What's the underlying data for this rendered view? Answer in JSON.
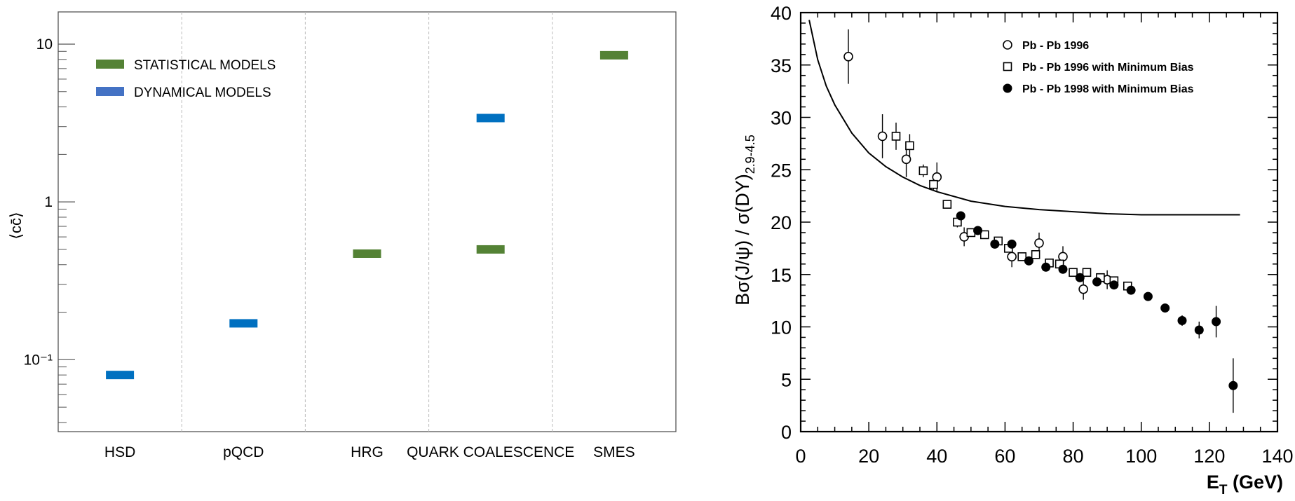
{
  "chart_data": [
    {
      "type": "bar",
      "y_scale": "log",
      "ylabel": "⟨cc̄⟩",
      "ylim": [
        0.035,
        16
      ],
      "ytick_labels": [
        "10⁻¹",
        "1",
        "10"
      ],
      "grid": "vertical dashed separators between categories",
      "categories": [
        "HSD",
        "pQCD",
        "HRG",
        "QUARK COALESCENCE",
        "SMES"
      ],
      "legend_placement": "top-left",
      "legend": [
        {
          "label": "STATISTICAL MODELS",
          "color": "#548235"
        },
        {
          "label": "DYNAMICAL MODELS",
          "color": "#4472C4"
        }
      ],
      "values": [
        {
          "category": "HSD",
          "value": 0.08,
          "model": "dynamical",
          "color": "#0070C0"
        },
        {
          "category": "pQCD",
          "value": 0.17,
          "model": "dynamical",
          "color": "#0070C0"
        },
        {
          "category": "HRG",
          "value": 0.47,
          "model": "statistical",
          "color": "#548235"
        },
        {
          "category": "QUARK COALESCENCE",
          "value": 0.5,
          "model": "statistical",
          "color": "#548235"
        },
        {
          "category": "SMES",
          "value": 8.5,
          "model": "statistical",
          "color": "#548235"
        },
        {
          "category": "QUARK COALESCENCE",
          "value": 3.4,
          "model": "dynamical",
          "color": "#0070C0"
        }
      ]
    },
    {
      "type": "scatter",
      "xlabel": "E_T (GeV)",
      "ylabel": "Bσ(J/ψ) / σ(DY)_2.9-4.5",
      "xlim": [
        0,
        140
      ],
      "ylim": [
        0,
        40
      ],
      "xticks": [
        0,
        20,
        40,
        60,
        80,
        100,
        120,
        140
      ],
      "yticks": [
        0,
        5,
        10,
        15,
        20,
        25,
        30,
        35,
        40
      ],
      "legend_placement": "top-right",
      "series": [
        {
          "name": "Pb - Pb 1996",
          "marker": "open-circle",
          "points": [
            [
              14,
              35.8,
              2.6
            ],
            [
              24,
              28.2,
              2.1
            ],
            [
              31,
              26.0,
              1.7
            ],
            [
              40,
              24.3,
              1.4
            ],
            [
              48,
              18.6,
              0.9
            ],
            [
              62,
              16.7,
              1.0
            ],
            [
              70,
              18.0,
              1.0
            ],
            [
              77,
              16.7,
              1.0
            ],
            [
              83,
              13.6,
              1.0
            ],
            [
              90,
              14.5,
              0.9
            ]
          ]
        },
        {
          "name": "Pb - Pb 1996 with Minimum Bias",
          "marker": "open-square",
          "points": [
            [
              28,
              28.2,
              1.3
            ],
            [
              32,
              27.3,
              1.1
            ],
            [
              36,
              24.9,
              0.6
            ],
            [
              39,
              23.6,
              0.5
            ],
            [
              43,
              21.7,
              0.4
            ],
            [
              46,
              20.0,
              0.5
            ],
            [
              50,
              19.0,
              0.4
            ],
            [
              54,
              18.8,
              0.4
            ],
            [
              58,
              18.2,
              0.4
            ],
            [
              61,
              17.5,
              0.4
            ],
            [
              65,
              16.7,
              0.4
            ],
            [
              69,
              16.9,
              0.4
            ],
            [
              73,
              16.1,
              0.4
            ],
            [
              76,
              16.0,
              0.4
            ],
            [
              80,
              15.2,
              0.4
            ],
            [
              84,
              15.2,
              0.4
            ],
            [
              88,
              14.7,
              0.4
            ],
            [
              92,
              14.4,
              0.4
            ],
            [
              96,
              13.9,
              0.4
            ]
          ]
        },
        {
          "name": "Pb - Pb 1998 with Minimum Bias",
          "marker": "filled-circle",
          "points": [
            [
              47,
              20.6,
              0.4
            ],
            [
              52,
              19.2,
              0.4
            ],
            [
              57,
              17.9,
              0.4
            ],
            [
              62,
              17.9,
              0.4
            ],
            [
              67,
              16.3,
              0.4
            ],
            [
              72,
              15.7,
              0.4
            ],
            [
              77,
              15.5,
              0.4
            ],
            [
              82,
              14.7,
              0.4
            ],
            [
              87,
              14.3,
              0.4
            ],
            [
              92,
              14.0,
              0.4
            ],
            [
              97,
              13.5,
              0.4
            ],
            [
              102,
              12.9,
              0.4
            ],
            [
              107,
              11.8,
              0.4
            ],
            [
              112,
              10.6,
              0.5
            ],
            [
              117,
              9.7,
              0.8
            ],
            [
              122,
              10.5,
              1.5
            ],
            [
              127,
              4.4,
              2.6
            ]
          ]
        }
      ],
      "curve": [
        [
          2.5,
          39.3
        ],
        [
          5,
          35.5
        ],
        [
          7.5,
          33.0
        ],
        [
          10,
          31.2
        ],
        [
          15,
          28.5
        ],
        [
          20,
          26.6
        ],
        [
          25,
          25.3
        ],
        [
          30,
          24.3
        ],
        [
          35,
          23.5
        ],
        [
          40,
          22.9
        ],
        [
          50,
          22.0
        ],
        [
          60,
          21.5
        ],
        [
          70,
          21.2
        ],
        [
          80,
          21.0
        ],
        [
          90,
          20.8
        ],
        [
          100,
          20.7
        ],
        [
          110,
          20.7
        ],
        [
          120,
          20.7
        ],
        [
          129,
          20.7
        ]
      ]
    }
  ]
}
